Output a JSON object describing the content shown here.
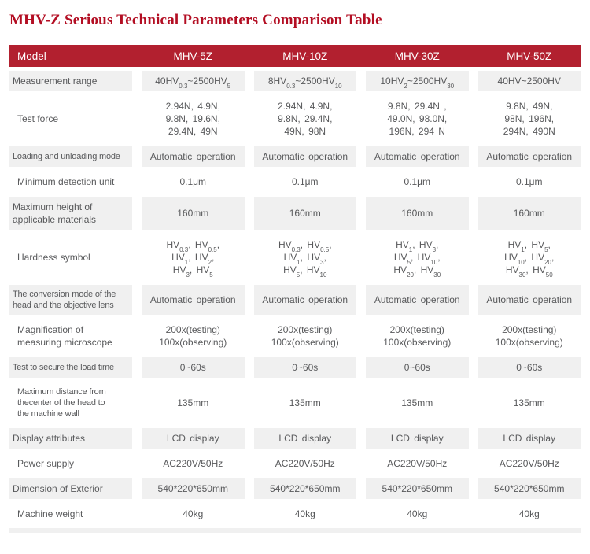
{
  "title": "MHV-Z Serious Technical Parameters Comparison Table",
  "colors": {
    "header_bg": "#b2202f",
    "title_color": "#b30e23",
    "shaded_row_bg": "#f0f0f0",
    "text_color": "#58595b"
  },
  "table": {
    "header": {
      "model_label": "Model",
      "columns": [
        "MHV-5Z",
        "MHV-10Z",
        "MHV-30Z",
        "MHV-50Z"
      ]
    },
    "rows": [
      {
        "label": [
          "Measurement range"
        ],
        "shaded": true,
        "values": [
          [
            "40HV{0.3}~2500HV{5}"
          ],
          [
            "8HV{0.3}~2500HV{10}"
          ],
          [
            "10HV{2}~2500HV{30}"
          ],
          [
            "40HV~2500HV"
          ]
        ]
      },
      {
        "label": [
          "Test force"
        ],
        "shaded": false,
        "values": [
          [
            "2.94N,  4.9N,",
            "9.8N,  19.6N,",
            "29.4N,  49N"
          ],
          [
            "2.94N,  4.9N,",
            "9.8N,  29.4N,",
            "49N,  98N"
          ],
          [
            "9.8N,  29.4N ,",
            "49.0N,  98.0N,",
            "196N,  294 N"
          ],
          [
            "9.8N,  49N,",
            "98N,  196N,",
            "294N,  490N"
          ]
        ]
      },
      {
        "label": [
          "Loading and unloading mode"
        ],
        "shaded": true,
        "values": [
          [
            "Automatic operation"
          ],
          [
            "Automatic operation"
          ],
          [
            "Automatic operation"
          ],
          [
            "Automatic operation"
          ]
        ]
      },
      {
        "label": [
          "Minimum detection unit"
        ],
        "shaded": false,
        "values": [
          [
            "0.1μm"
          ],
          [
            "0.1μm"
          ],
          [
            "0.1μm"
          ],
          [
            "0.1μm"
          ]
        ]
      },
      {
        "label": [
          "Maximum height of",
          "applicable materials"
        ],
        "shaded": true,
        "values": [
          [
            "160mm"
          ],
          [
            "160mm"
          ],
          [
            "160mm"
          ],
          [
            "160mm"
          ]
        ]
      },
      {
        "label": [
          "Hardness symbol"
        ],
        "shaded": false,
        "values": [
          [
            "HV{0.3},  HV{0.5},",
            "HV{1},  HV{2},",
            "HV{3},  HV{5}"
          ],
          [
            "HV{0.3},  HV{0.5},",
            "HV{1},  HV{3},",
            "HV{5},  HV{10}"
          ],
          [
            "HV{1},  HV{3},",
            "HV{5},  HV{10},",
            "HV{20},  HV{30}"
          ],
          [
            "HV{1},  HV{5},",
            "HV{10},  HV{20},",
            "HV{30},  HV{50}"
          ]
        ]
      },
      {
        "label": [
          "The conversion mode of the",
          "head and the objective lens"
        ],
        "shaded": true,
        "values": [
          [
            "Automatic operation"
          ],
          [
            "Automatic operation"
          ],
          [
            "Automatic operation"
          ],
          [
            "Automatic operation"
          ]
        ]
      },
      {
        "label": [
          "Magnification of",
          "measuring microscope"
        ],
        "shaded": false,
        "values": [
          [
            "200x(testing)",
            "100x(observing)"
          ],
          [
            "200x(testing)",
            "100x(observing)"
          ],
          [
            "200x(testing)",
            "100x(observing)"
          ],
          [
            "200x(testing)",
            "100x(observing)"
          ]
        ]
      },
      {
        "label": [
          "Test to secure the load time"
        ],
        "shaded": true,
        "values": [
          [
            "0~60s"
          ],
          [
            "0~60s"
          ],
          [
            "0~60s"
          ],
          [
            "0~60s"
          ]
        ]
      },
      {
        "label": [
          "Maximum distance from",
          "thecenter of the head to",
          "the machine wall"
        ],
        "shaded": false,
        "values": [
          [
            "135mm"
          ],
          [
            "135mm"
          ],
          [
            "135mm"
          ],
          [
            "135mm"
          ]
        ]
      },
      {
        "label": [
          "Display attributes"
        ],
        "shaded": true,
        "values": [
          [
            "LCD display"
          ],
          [
            "LCD display"
          ],
          [
            "LCD display"
          ],
          [
            "LCD display"
          ]
        ]
      },
      {
        "label": [
          "Power supply"
        ],
        "shaded": false,
        "values": [
          [
            "AC220V/50Hz"
          ],
          [
            "AC220V/50Hz"
          ],
          [
            "AC220V/50Hz"
          ],
          [
            "AC220V/50Hz"
          ]
        ]
      },
      {
        "label": [
          "Dimension of Exterior"
        ],
        "shaded": true,
        "values": [
          [
            "540*220*650mm"
          ],
          [
            "540*220*650mm"
          ],
          [
            "540*220*650mm"
          ],
          [
            "540*220*650mm"
          ]
        ]
      },
      {
        "label": [
          "Machine weight"
        ],
        "shaded": false,
        "values": [
          [
            "40kg"
          ],
          [
            "40kg"
          ],
          [
            "40kg"
          ],
          [
            "40kg"
          ]
        ]
      }
    ]
  }
}
